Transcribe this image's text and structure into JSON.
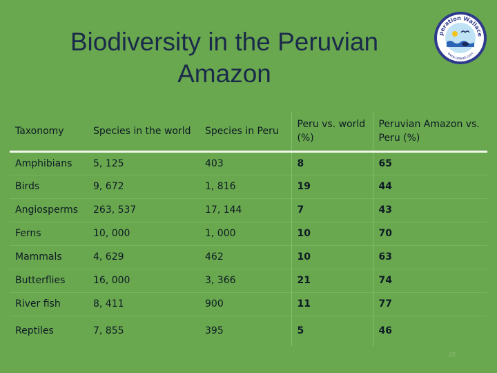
{
  "slide": {
    "title_line1": "Biodiversity in the Peruvian",
    "title_line2": "Amazon",
    "page_number": "22"
  },
  "logo": {
    "text_top": "Operation Wallacea",
    "text_bottom": "www.opwall.com"
  },
  "table": {
    "headers": [
      "Taxonomy",
      "Species in the world",
      "Species in Peru",
      "Peru vs. world (%)",
      "Peruvian Amazon vs. Peru (%)"
    ],
    "rows": [
      [
        "Amphibians",
        "5, 125",
        "403",
        "8",
        "65"
      ],
      [
        "Birds",
        "9, 672",
        "1, 816",
        "19",
        "44"
      ],
      [
        "Angiosperms",
        "263, 537",
        "17, 144",
        "7",
        "43"
      ],
      [
        "Ferns",
        "10, 000",
        "1, 000",
        "10",
        "70"
      ],
      [
        "Mammals",
        "4, 629",
        "462",
        "10",
        "63"
      ],
      [
        "Butterflies",
        "16, 000",
        "3, 366",
        "21",
        "74"
      ],
      [
        "River fish",
        "8, 411",
        "900",
        "11",
        "77"
      ],
      [
        "Reptiles",
        "7, 855",
        "395",
        "5",
        "46"
      ]
    ]
  },
  "colors": {
    "background": "#6aa84f",
    "title": "#1a2a4a",
    "logo_ring": "#2e3a8c"
  }
}
